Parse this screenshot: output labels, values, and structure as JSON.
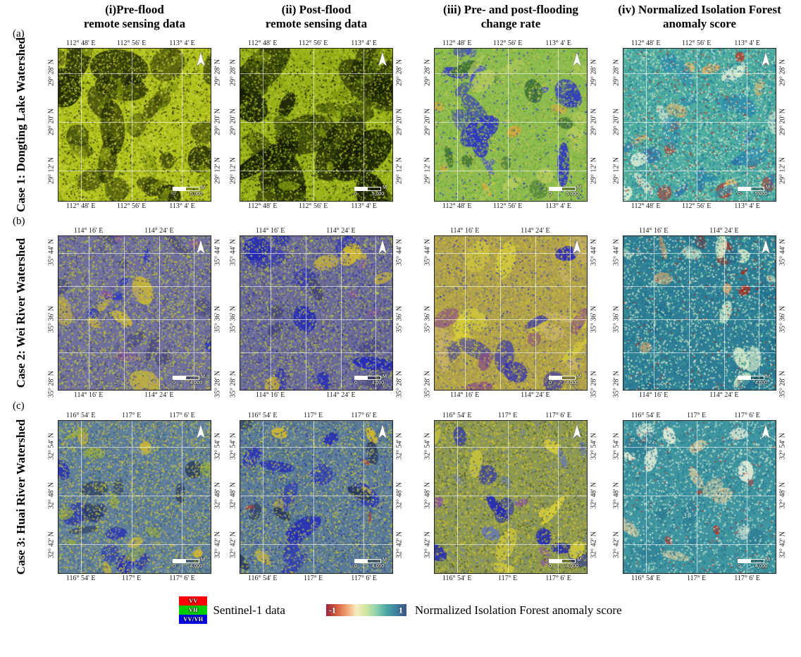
{
  "figure": {
    "column_headers": [
      {
        "line1": "(i)Pre-flood",
        "line2": "remote sensing data"
      },
      {
        "line1": "(ii) Post-flood",
        "line2": "remote sensing data"
      },
      {
        "line1": "(iii) Pre- and post-flooding",
        "line2": "change rate"
      },
      {
        "line1": "(iv) Normalized Isolation Forest",
        "line2": "anomaly score"
      }
    ],
    "rows": [
      {
        "letter": "(a)",
        "case_label": "Case 1: Dongting Lake Watershed",
        "lon_labels": [
          "112° 48' E",
          "112° 56' E",
          "113° 4' E"
        ],
        "lon_positions": [
          15,
          48,
          81
        ],
        "lat_labels": [
          "29° 28' N",
          "29° 20' N",
          "29° 12' N"
        ],
        "lat_positions": [
          16,
          48,
          80
        ],
        "grid_v": [
          15,
          48,
          81
        ],
        "grid_h": [
          16,
          48,
          80
        ],
        "map_height": 218,
        "scale_bar": {
          "unit": "M",
          "start": "0",
          "end": "5,000"
        },
        "panels": [
          {
            "seed": 11,
            "base": "#b4c41f",
            "blobs": [
              [
                "#1d2407",
                14,
                14,
                52
              ],
              [
                "#39420c",
                10,
                8,
                30
              ],
              [
                "#879a12",
                12,
                6,
                20
              ]
            ],
            "speckles": [
              [
                "#90a314",
                2400
              ],
              [
                "#d6dc52",
                1000
              ],
              [
                "#5d720c",
                900
              ],
              [
                "#1d2407",
                500
              ]
            ]
          },
          {
            "seed": 22,
            "base": "#9cb31b",
            "blobs": [
              [
                "#141a04",
                16,
                16,
                56
              ],
              [
                "#2c3608",
                10,
                8,
                28
              ],
              [
                "#7e9410",
                10,
                6,
                18
              ]
            ],
            "speckles": [
              [
                "#7fa012",
                2200
              ],
              [
                "#c9d33e",
                900
              ],
              [
                "#4c5e08",
                900
              ],
              [
                "#141a04",
                600
              ]
            ]
          },
          {
            "seed": 33,
            "base": "#8cbb4f",
            "blobs": [
              [
                "#2d36c4",
                10,
                10,
                34
              ],
              [
                "#4a55d0",
                6,
                6,
                16
              ],
              [
                "#e0a23a",
                5,
                5,
                14
              ],
              [
                "#3c6e35",
                8,
                8,
                22
              ],
              [
                "#b4cc5e",
                10,
                8,
                24
              ]
            ],
            "speckles": [
              [
                "#a7c455",
                2000
              ],
              [
                "#6ba03b",
                1200
              ],
              [
                "#2d36c4",
                300
              ],
              [
                "#d8c84a",
                400
              ]
            ]
          },
          {
            "seed": 44,
            "base": "#4fae9f",
            "blobs": [
              [
                "#c03526",
                8,
                6,
                22
              ],
              [
                "#e3b469",
                6,
                6,
                16
              ],
              [
                "#2c6fae",
                7,
                6,
                18
              ],
              [
                "#e6f0d8",
                8,
                8,
                20
              ],
              [
                "#2f8fae",
                10,
                8,
                24
              ]
            ],
            "speckles": [
              [
                "#2f8fae",
                1800
              ],
              [
                "#c6e6d2",
                1400
              ],
              [
                "#1f6f8f",
                800
              ],
              [
                "#c03526",
                250
              ],
              [
                "#e8d9a0",
                350
              ]
            ]
          }
        ]
      },
      {
        "letter": "(b)",
        "case_label": "Case 2: Wei River Watershed",
        "lon_labels": [
          "114° 16' E",
          "114° 24' E"
        ],
        "lon_positions": [
          20,
          66
        ],
        "lat_labels": [
          "35° 44' N",
          "35° 36' N",
          "35° 28' N"
        ],
        "lat_positions": [
          11,
          54,
          96
        ],
        "grid_v": [
          20,
          43,
          66,
          89
        ],
        "grid_h": [
          11,
          32.5,
          54,
          75.5
        ],
        "map_height": 220,
        "scale_bar": {
          "unit": "M",
          "start": "0",
          "end": "4,000"
        },
        "panels": [
          {
            "seed": 55,
            "base": "#6f6f9b",
            "blobs": [
              [
                "#d4ba2e",
                6,
                8,
                26
              ],
              [
                "#2a35c0",
                5,
                4,
                14
              ],
              [
                "#8a5a9a",
                5,
                6,
                16
              ],
              [
                "#4a4a7e",
                8,
                8,
                24
              ]
            ],
            "speckles": [
              [
                "#b9c832",
                1800
              ],
              [
                "#8a8ab2",
                1200
              ],
              [
                "#44447a",
                900
              ],
              [
                "#d4ba2e",
                400
              ]
            ]
          },
          {
            "seed": 66,
            "base": "#6a6a97",
            "blobs": [
              [
                "#2228b8",
                9,
                10,
                34
              ],
              [
                "#d4ba2e",
                5,
                8,
                22
              ],
              [
                "#8a5a9a",
                4,
                6,
                14
              ],
              [
                "#44447a",
                6,
                8,
                22
              ]
            ],
            "speckles": [
              [
                "#b9c832",
                1700
              ],
              [
                "#8a8ab2",
                1100
              ],
              [
                "#44447a",
                900
              ],
              [
                "#2228b8",
                350
              ]
            ]
          },
          {
            "seed": 77,
            "base": "#b3a24d",
            "blobs": [
              [
                "#d8cf3a",
                8,
                10,
                30
              ],
              [
                "#2a2ab8",
                7,
                8,
                28
              ],
              [
                "#8a4a8a",
                5,
                8,
                22
              ],
              [
                "#c8b06a",
                8,
                8,
                24
              ]
            ],
            "speckles": [
              [
                "#cfc530",
                1800
              ],
              [
                "#8a8a50",
                1200
              ],
              [
                "#6a6a9a",
                500
              ],
              [
                "#2a2ab8",
                200
              ]
            ]
          },
          {
            "seed": 88,
            "base": "#2e7f96",
            "blobs": [
              [
                "#e8a868",
                5,
                6,
                18
              ],
              [
                "#b02818",
                5,
                5,
                16
              ],
              [
                "#d8ecc8",
                9,
                8,
                22
              ],
              [
                "#1f6f8f",
                8,
                8,
                24
              ]
            ],
            "speckles": [
              [
                "#1f6f8f",
                1400
              ],
              [
                "#d8ecc8",
                1500
              ],
              [
                "#49ae9e",
                900
              ],
              [
                "#b02818",
                150
              ]
            ]
          }
        ]
      },
      {
        "letter": "(c)",
        "case_label": "Case 3: Huai River Watershed",
        "lon_labels": [
          "116° 54' E",
          "117° E",
          "117° 6' E"
        ],
        "lon_positions": [
          15,
          48,
          81
        ],
        "lat_labels": [
          "32° 54' N",
          "32° 48' N",
          "32° 42' N"
        ],
        "lat_positions": [
          17,
          49,
          81
        ],
        "grid_v": [
          15,
          48,
          81
        ],
        "grid_h": [
          17,
          49,
          81
        ],
        "map_height": 218,
        "scale_bar": {
          "unit": "M",
          "start": "0",
          "end": "4,000"
        },
        "panels": [
          {
            "seed": 99,
            "base": "#5e7e99",
            "blobs": [
              [
                "#2228b8",
                7,
                8,
                26
              ],
              [
                "#d2b82e",
                5,
                6,
                16
              ],
              [
                "#2a3a5a",
                7,
                8,
                22
              ],
              [
                "#8fa845",
                8,
                6,
                18
              ]
            ],
            "speckles": [
              [
                "#c8c832",
                1600
              ],
              [
                "#8aa0b0",
                1200
              ],
              [
                "#3a5a80",
                900
              ],
              [
                "#d2b82e",
                400
              ]
            ]
          },
          {
            "seed": 111,
            "base": "#5a7a96",
            "blobs": [
              [
                "#2228b8",
                9,
                10,
                32
              ],
              [
                "#d2b82e",
                5,
                6,
                16
              ],
              [
                "#2a3a5a",
                6,
                8,
                20
              ],
              [
                "#c03526",
                3,
                3,
                8
              ]
            ],
            "speckles": [
              [
                "#c8c832",
                1600
              ],
              [
                "#8aa0b0",
                1200
              ],
              [
                "#3a5a80",
                900
              ],
              [
                "#2228b8",
                300
              ]
            ]
          },
          {
            "seed": 122,
            "base": "#8e9950",
            "blobs": [
              [
                "#2228b8",
                8,
                10,
                30
              ],
              [
                "#d8cf3a",
                8,
                8,
                26
              ],
              [
                "#8a5a9a",
                4,
                6,
                14
              ],
              [
                "#6a7ab0",
                6,
                6,
                18
              ]
            ],
            "speckles": [
              [
                "#cfc530",
                1800
              ],
              [
                "#6a7ab0",
                800
              ],
              [
                "#4a5a30",
                800
              ]
            ]
          },
          {
            "seed": 133,
            "base": "#3f96a0",
            "blobs": [
              [
                "#d8c89a",
                6,
                10,
                26
              ],
              [
                "#c03526",
                4,
                3,
                10
              ],
              [
                "#e8eed8",
                8,
                8,
                20
              ],
              [
                "#2f7f96",
                8,
                8,
                24
              ]
            ],
            "speckles": [
              [
                "#2f7f96",
                1400
              ],
              [
                "#cfe8d0",
                1400
              ],
              [
                "#1f6f8f",
                700
              ],
              [
                "#c03526",
                120
              ]
            ]
          }
        ]
      }
    ],
    "legend": {
      "sentinel": {
        "caption": "Sentinel-1 data",
        "bands": [
          {
            "label": "VV",
            "color": "#fb0007"
          },
          {
            "label": "VH",
            "color": "#00cc00"
          },
          {
            "label": "VV/VH",
            "color": "#0404dd"
          }
        ]
      },
      "colorbar": {
        "min_label": "-1",
        "max_label": "1",
        "caption": "Normalized Isolation Forest anomaly score",
        "stops": [
          "#9c2340",
          "#d45a3a",
          "#f0a070",
          "#f8ecc0",
          "#cfe6a0",
          "#8fd0ac",
          "#4aa8a4",
          "#3f7f9e",
          "#3b5288"
        ]
      }
    }
  }
}
